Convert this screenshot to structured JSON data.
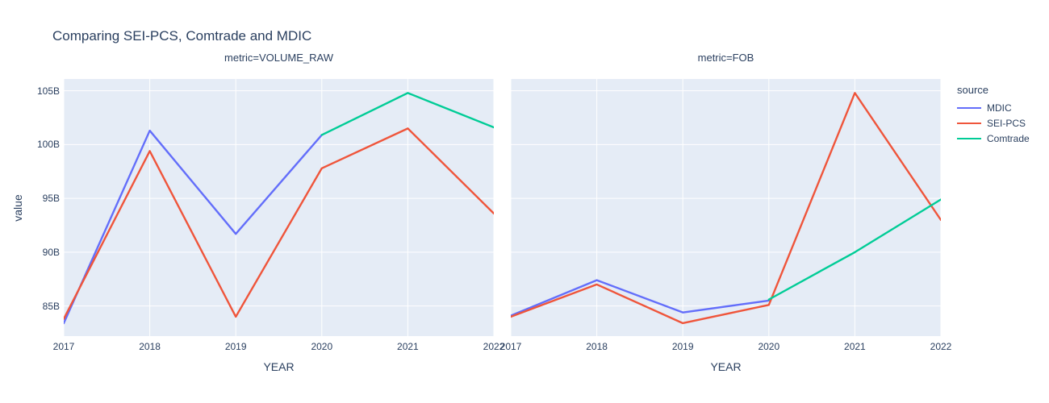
{
  "title": "Comparing SEI-PCS, Comtrade and MDIC",
  "axes": {
    "x_title": "YEAR",
    "y_title": "value",
    "x_ticks": [
      2017,
      2018,
      2019,
      2020,
      2021,
      2022
    ],
    "y_ticks": [
      {
        "value": 85,
        "label": "85B"
      },
      {
        "value": 90,
        "label": "90B"
      },
      {
        "value": 95,
        "label": "95B"
      },
      {
        "value": 100,
        "label": "100B"
      },
      {
        "value": 105,
        "label": "105B"
      }
    ],
    "ylim": [
      82.2,
      106.1
    ],
    "xlim": [
      2017,
      2022
    ],
    "grid": true,
    "shared_y": true
  },
  "legend": {
    "title": "source",
    "position": "right",
    "entries": [
      {
        "label": "MDIC",
        "color": "#636EFA"
      },
      {
        "label": "SEI-PCS",
        "color": "#EF553B"
      },
      {
        "label": "Comtrade",
        "color": "#00CC96"
      }
    ]
  },
  "colors": {
    "text": "#2a3f5f",
    "plot_background": "#E5ECF6",
    "gridline": "#FFFFFF",
    "paper": "#FFFFFF"
  },
  "chart_data": [
    {
      "type": "line",
      "facet_title": "metric=VOLUME_RAW",
      "xlabel": "YEAR",
      "ylabel": "value",
      "series": [
        {
          "name": "MDIC",
          "color": "#636EFA",
          "x": [
            2017,
            2018,
            2019,
            2020
          ],
          "y": [
            83.4,
            101.3,
            91.7,
            100.9
          ]
        },
        {
          "name": "SEI-PCS",
          "color": "#EF553B",
          "x": [
            2017,
            2018,
            2019,
            2020,
            2021,
            2022
          ],
          "y": [
            83.8,
            99.4,
            84.0,
            97.8,
            101.5,
            93.6
          ]
        },
        {
          "name": "Comtrade",
          "color": "#00CC96",
          "x": [
            2020,
            2021,
            2022
          ],
          "y": [
            100.9,
            104.8,
            101.6
          ]
        }
      ]
    },
    {
      "type": "line",
      "facet_title": "metric=FOB",
      "xlabel": "YEAR",
      "ylabel": "value",
      "series": [
        {
          "name": "MDIC",
          "color": "#636EFA",
          "x": [
            2017,
            2018,
            2019,
            2020
          ],
          "y": [
            84.1,
            87.4,
            84.4,
            85.5
          ]
        },
        {
          "name": "SEI-PCS",
          "color": "#EF553B",
          "x": [
            2017,
            2018,
            2019,
            2020,
            2021,
            2022
          ],
          "y": [
            84.0,
            87.0,
            83.4,
            85.1,
            104.8,
            93.0
          ]
        },
        {
          "name": "Comtrade",
          "color": "#00CC96",
          "x": [
            2020,
            2021,
            2022
          ],
          "y": [
            85.6,
            90.0,
            94.9
          ]
        }
      ]
    }
  ]
}
